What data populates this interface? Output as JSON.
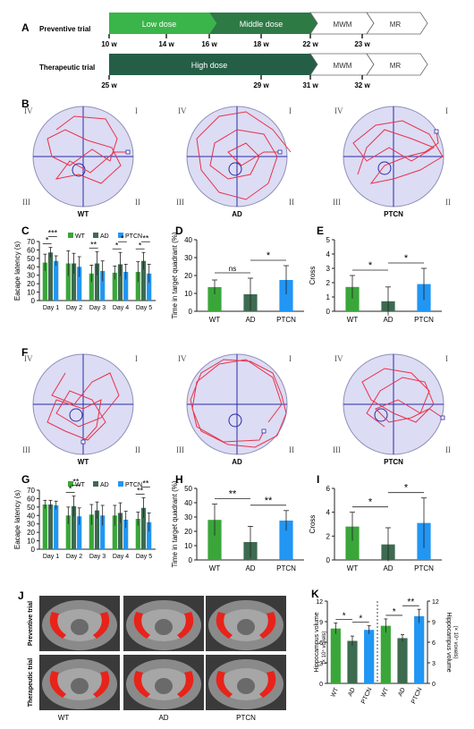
{
  "panel_letters": [
    "A",
    "B",
    "C",
    "D",
    "E",
    "F",
    "G",
    "H",
    "I",
    "J",
    "K"
  ],
  "timeline": {
    "preventive": {
      "label": "Preventive trial",
      "stages": [
        "Low dose",
        "Middle dose",
        "MWM",
        "MR"
      ],
      "weeks": [
        "10 w",
        "14 w",
        "16 w",
        "18 w",
        "22 w",
        "23 w"
      ],
      "colors": [
        "#3ab54a",
        "#2d7a45",
        "#ffffff",
        "#ffffff"
      ]
    },
    "therapeutic": {
      "label": "Therapeutic trial",
      "stages": [
        "High dose",
        "MWM",
        "MR"
      ],
      "weeks": [
        "25 w",
        "29 w",
        "31 w",
        "32 w"
      ],
      "colors": [
        "#245e47",
        "#ffffff",
        "#ffffff"
      ]
    }
  },
  "quadrants": [
    "IV",
    "I",
    "III",
    "II"
  ],
  "maze_groups": [
    "WT",
    "AD",
    "PTCN"
  ],
  "colors": {
    "wt": "#3aa63a",
    "ad": "#3d6b50",
    "ptcn": "#2196f3",
    "path": "#e8324a",
    "pool": "#dcdcf4"
  },
  "chart_data": [
    {
      "panel": "C",
      "type": "bar",
      "ylabel": "Eacape latency (s)",
      "categories": [
        "Day 1",
        "Day 2",
        "Day 3",
        "Day 4",
        "Day 5"
      ],
      "ylim": [
        0,
        70
      ],
      "yticks": [
        "0",
        "10",
        "20",
        "30",
        "40",
        "50",
        "60",
        "70"
      ],
      "series": [
        {
          "name": "WT",
          "values": [
            45,
            44,
            32,
            33,
            34
          ],
          "err": [
            10,
            15,
            10,
            8,
            12
          ]
        },
        {
          "name": "AD",
          "values": [
            57,
            44,
            44,
            43,
            47
          ],
          "err": [
            6,
            12,
            14,
            14,
            10
          ]
        },
        {
          "name": "PTCN",
          "values": [
            47,
            40,
            35,
            34,
            32
          ],
          "err": [
            6,
            12,
            12,
            9,
            11
          ]
        }
      ],
      "significance": [
        {
          "day": "Day 1",
          "marks": [
            "*",
            "***"
          ]
        },
        {
          "day": "Day 3",
          "marks": [
            "**"
          ]
        },
        {
          "day": "Day 4",
          "marks": [
            "*",
            "*"
          ]
        },
        {
          "day": "Day 5",
          "marks": [
            "*",
            "**"
          ]
        }
      ]
    },
    {
      "panel": "D",
      "type": "bar",
      "ylabel": "Time in target quadrant (%)",
      "categories": [
        "WT",
        "AD",
        "PTCN"
      ],
      "values": [
        13.5,
        9.5,
        17.5
      ],
      "err": [
        4,
        9,
        8
      ],
      "ylim": [
        0,
        40
      ],
      "yticks": [
        "0",
        "10",
        "20",
        "30",
        "40"
      ],
      "significance": [
        {
          "pair": [
            "WT",
            "AD"
          ],
          "mark": "ns"
        },
        {
          "pair": [
            "AD",
            "PTCN"
          ],
          "mark": "*"
        }
      ]
    },
    {
      "panel": "E",
      "type": "bar",
      "ylabel": "Cross",
      "categories": [
        "WT",
        "AD",
        "PTCN"
      ],
      "values": [
        1.7,
        0.7,
        1.9
      ],
      "err": [
        0.8,
        1.0,
        1.1
      ],
      "ylim": [
        0,
        5
      ],
      "yticks": [
        "0",
        "1",
        "2",
        "3",
        "4",
        "5"
      ],
      "significance": [
        {
          "pair": [
            "WT",
            "AD"
          ],
          "mark": "*"
        },
        {
          "pair": [
            "AD",
            "PTCN"
          ],
          "mark": "*"
        }
      ]
    },
    {
      "panel": "G",
      "type": "bar",
      "ylabel": "Eacape latency (s)",
      "categories": [
        "Day 1",
        "Day 2",
        "Day 3",
        "Day 4",
        "Day 5"
      ],
      "ylim": [
        0,
        70
      ],
      "yticks": [
        "0",
        "10",
        "20",
        "30",
        "40",
        "50",
        "60",
        "70"
      ],
      "series": [
        {
          "name": "WT",
          "values": [
            53,
            40,
            41,
            40,
            36
          ],
          "err": [
            5,
            10,
            12,
            12,
            8
          ]
        },
        {
          "name": "AD",
          "values": [
            53,
            51,
            46,
            43,
            49
          ],
          "err": [
            5,
            12,
            10,
            12,
            12
          ]
        },
        {
          "name": "PTCN",
          "values": [
            52,
            39,
            40,
            35,
            32
          ],
          "err": [
            5,
            10,
            12,
            10,
            11
          ]
        }
      ],
      "significance": [
        {
          "day": "Day 2",
          "marks": [
            "*",
            "**"
          ]
        },
        {
          "day": "Day 5",
          "marks": [
            "**",
            "**"
          ]
        }
      ]
    },
    {
      "panel": "H",
      "type": "bar",
      "ylabel": "Time in target quadrant (%)",
      "categories": [
        "WT",
        "AD",
        "PTCN"
      ],
      "values": [
        28,
        12.5,
        27.5
      ],
      "err": [
        11,
        11,
        7
      ],
      "ylim": [
        0,
        50
      ],
      "yticks": [
        "0",
        "10",
        "20",
        "30",
        "40",
        "50"
      ],
      "significance": [
        {
          "pair": [
            "WT",
            "AD"
          ],
          "mark": "**"
        },
        {
          "pair": [
            "AD",
            "PTCN"
          ],
          "mark": "**"
        }
      ]
    },
    {
      "panel": "I",
      "type": "bar",
      "ylabel": "Cross",
      "categories": [
        "WT",
        "AD",
        "PTCN"
      ],
      "values": [
        2.8,
        1.3,
        3.1
      ],
      "err": [
        1.2,
        1.4,
        2.1
      ],
      "ylim": [
        0,
        6
      ],
      "yticks": [
        "0",
        "2",
        "4",
        "6"
      ],
      "significance": [
        {
          "pair": [
            "WT",
            "AD"
          ],
          "mark": "*"
        },
        {
          "pair": [
            "AD",
            "PTCN"
          ],
          "mark": "*"
        }
      ]
    },
    {
      "panel": "K",
      "type": "bar",
      "ylabel_left": "Hippocampus volume",
      "ylabel_left_unit": "(× 10⁴ voxels)",
      "ylabel_right": "Hippocampus volume",
      "ylabel_right_unit": "(× 10⁴ voxels)",
      "categories": [
        "WT",
        "AD",
        "PTCN",
        "WT",
        "AD",
        "PTCN"
      ],
      "values": [
        8.0,
        6.2,
        7.8,
        8.4,
        6.6,
        9.8
      ],
      "err": [
        0.8,
        0.7,
        0.6,
        1.0,
        0.5,
        1.0
      ],
      "ylim": [
        0,
        12
      ],
      "yticks": [
        "0",
        "3",
        "6",
        "9",
        "12"
      ],
      "significance": [
        {
          "pair": [
            0,
            1
          ],
          "mark": "*"
        },
        {
          "pair": [
            1,
            2
          ],
          "mark": "*"
        },
        {
          "pair": [
            3,
            4
          ],
          "mark": "*"
        },
        {
          "pair": [
            4,
            5
          ],
          "mark": "**"
        }
      ]
    }
  ],
  "mri": {
    "row_labels": [
      "Preventive trial",
      "Therapeutic trial"
    ],
    "col_labels": [
      "WT",
      "AD",
      "PTCN"
    ]
  }
}
